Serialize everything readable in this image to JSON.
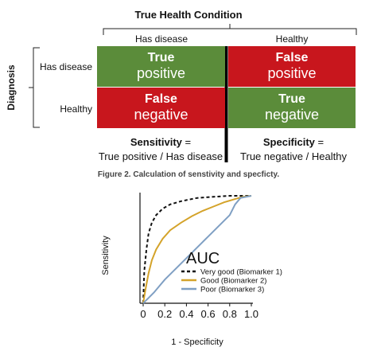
{
  "matrix": {
    "title": "True Health Condition",
    "col_labels": [
      "Has disease",
      "Healthy"
    ],
    "row_axis_label": "Diagnosis",
    "row_labels": [
      "Has disease",
      "Healthy"
    ],
    "cells": {
      "tp": {
        "line1": "True",
        "line2": "positive"
      },
      "fp": {
        "line1": "False",
        "line2": "positive"
      },
      "fn": {
        "line1": "False",
        "line2": "negative"
      },
      "tn": {
        "line1": "True",
        "line2": "negative"
      }
    },
    "colors": {
      "correct": "#5b8c3a",
      "incorrect": "#c8161d"
    },
    "sensitivity": {
      "name": "Sensitivity",
      "eq": " =",
      "formula": "True positive / Has disease"
    },
    "specificity": {
      "name": "Specificity",
      "eq": " =",
      "formula": "True negative / Healthy"
    }
  },
  "caption": "Figure 2. Calculation of senstivity and specficty.",
  "chart_data": {
    "type": "line",
    "title": "AUC",
    "xlabel": "1 - Specificity",
    "ylabel": "Sensitivity",
    "xlim": [
      0,
      1
    ],
    "ylim": [
      0,
      1
    ],
    "x_ticks": [
      "0",
      "0.2",
      "0.4",
      "0.6",
      "0.8",
      "1.0"
    ],
    "x_tick_values": [
      0,
      0.2,
      0.4,
      0.6,
      0.8,
      1.0
    ],
    "legend_position": "center-right",
    "series": [
      {
        "name": "Very good (Biomarker 1)",
        "color": "#111111",
        "dash": "dashed",
        "x": [
          0,
          0.01,
          0.03,
          0.05,
          0.08,
          0.12,
          0.18,
          0.25,
          0.35,
          0.5,
          0.65,
          0.8,
          1.0
        ],
        "y": [
          0,
          0.3,
          0.5,
          0.65,
          0.75,
          0.82,
          0.88,
          0.92,
          0.95,
          0.98,
          0.99,
          1.0,
          1.0
        ]
      },
      {
        "name": "Good (Biomarker 2)",
        "color": "#d4a32a",
        "dash": "solid",
        "x": [
          0,
          0.02,
          0.05,
          0.08,
          0.12,
          0.18,
          0.25,
          0.35,
          0.45,
          0.55,
          0.65,
          0.75,
          0.85,
          0.92,
          1.0
        ],
        "y": [
          0,
          0.12,
          0.28,
          0.4,
          0.5,
          0.6,
          0.68,
          0.75,
          0.81,
          0.86,
          0.9,
          0.94,
          0.97,
          0.99,
          1.0
        ]
      },
      {
        "name": "Poor (Biomarker 3)",
        "color": "#7f9fc3",
        "dash": "solid",
        "x": [
          0,
          0.05,
          0.1,
          0.15,
          0.2,
          0.3,
          0.4,
          0.5,
          0.6,
          0.7,
          0.8,
          0.85,
          0.9,
          1.0
        ],
        "y": [
          0,
          0.05,
          0.1,
          0.16,
          0.22,
          0.32,
          0.42,
          0.52,
          0.62,
          0.72,
          0.82,
          0.92,
          0.98,
          1.0
        ]
      }
    ]
  }
}
